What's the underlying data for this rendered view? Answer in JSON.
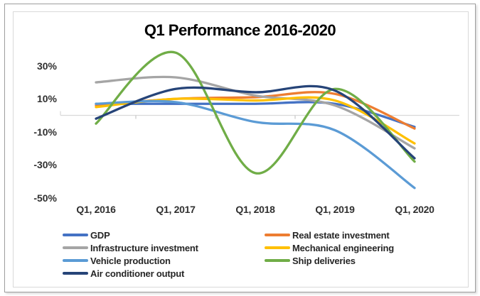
{
  "chart_data": {
    "type": "line",
    "smooth": true,
    "title": "Q1 Performance 2016-2020",
    "categories": [
      "Q1, 2016",
      "Q1, 2017",
      "Q1, 2018",
      "Q1, 2019",
      "Q1, 2020"
    ],
    "y_tick_labels": [
      "30%",
      "10%",
      "-10%",
      "-30%",
      "-50%"
    ],
    "y_tick_values": [
      30,
      10,
      -10,
      -30,
      -50
    ],
    "ylim": [
      -50,
      40
    ],
    "unit": "percent",
    "grid": "zero-axis-line-only",
    "axis_line_color": "#d9d9d9",
    "legend_position": "bottom",
    "series": [
      {
        "name": "GDP",
        "color": "#4472C4",
        "values": [
          7,
          7,
          7,
          7,
          -7
        ]
      },
      {
        "name": "Real estate investment",
        "color": "#ED7D31",
        "values": [
          6,
          10,
          11,
          13,
          -8
        ]
      },
      {
        "name": "Infrastructure investment",
        "color": "#A5A5A5",
        "values": [
          20,
          23,
          12,
          6,
          -20
        ]
      },
      {
        "name": "Mechanical engineering",
        "color": "#FFC000",
        "values": [
          5,
          10,
          9,
          9,
          -17
        ]
      },
      {
        "name": "Vehicle production",
        "color": "#5B9BD5",
        "values": [
          7,
          8,
          -4,
          -9,
          -44
        ]
      },
      {
        "name": "Ship deliveries",
        "color": "#70AD47",
        "values": [
          -5,
          38,
          -35,
          16,
          -28
        ]
      },
      {
        "name": "Air conditioner output",
        "color": "#264478",
        "values": [
          -2,
          16,
          14,
          15,
          -26
        ]
      }
    ]
  }
}
